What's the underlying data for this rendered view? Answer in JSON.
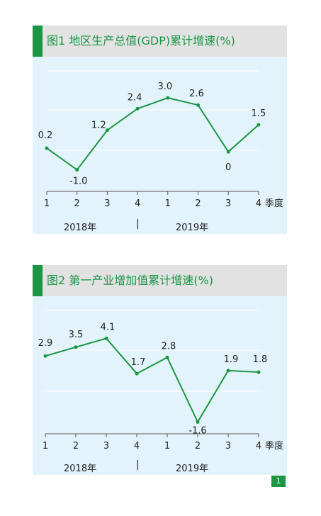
{
  "page_number": "1",
  "colors": {
    "accent": "#1a9645",
    "panel_bg": "#e3f3fb",
    "header_bg": "#e2e2e2"
  },
  "charts": [
    {
      "title": "图1  地区生产总值(GDP)累计增速(%)",
      "unit_label": "季度",
      "year_labels": [
        "2018年",
        "2019年"
      ],
      "separator": "|"
    },
    {
      "title": "图2  第一产业增加值累计增速(%)",
      "unit_label": "季度",
      "year_labels": [
        "2018年",
        "2019年"
      ],
      "separator": "|"
    }
  ],
  "chart_data": [
    {
      "type": "line",
      "title": "图1  地区生产总值(GDP)累计增速(%)",
      "xlabel": "季度",
      "categories": [
        "1",
        "2",
        "3",
        "4",
        "1",
        "2",
        "3",
        "4"
      ],
      "groups": [
        {
          "label": "2018年",
          "categories": [
            "1",
            "2",
            "3",
            "4"
          ]
        },
        {
          "label": "2019年",
          "categories": [
            "1",
            "2",
            "3",
            "4"
          ]
        }
      ],
      "values": [
        0.2,
        -1.0,
        1.2,
        2.4,
        3.0,
        2.6,
        0,
        1.5
      ],
      "data_labels": [
        "0.2",
        "-1.0",
        "1.2",
        "2.4",
        "3.0",
        "2.6",
        "0",
        "1.5"
      ],
      "ylim": [
        -2.2,
        4.5
      ],
      "grid": true
    },
    {
      "type": "line",
      "title": "图2  第一产业增加值累计增速(%)",
      "xlabel": "季度",
      "categories": [
        "1",
        "2",
        "3",
        "4",
        "1",
        "2",
        "3",
        "4"
      ],
      "groups": [
        {
          "label": "2018年",
          "categories": [
            "1",
            "2",
            "3",
            "4"
          ]
        },
        {
          "label": "2019年",
          "categories": [
            "1",
            "2",
            "3",
            "4"
          ]
        }
      ],
      "values": [
        2.9,
        3.5,
        4.1,
        1.7,
        2.8,
        -1.6,
        1.9,
        1.8
      ],
      "data_labels": [
        "2.9",
        "3.5",
        "4.1",
        "1.7",
        "2.8",
        "-1.6",
        "1.9",
        "1.8"
      ],
      "ylim": [
        -2.4,
        6.0
      ],
      "grid": true
    }
  ]
}
